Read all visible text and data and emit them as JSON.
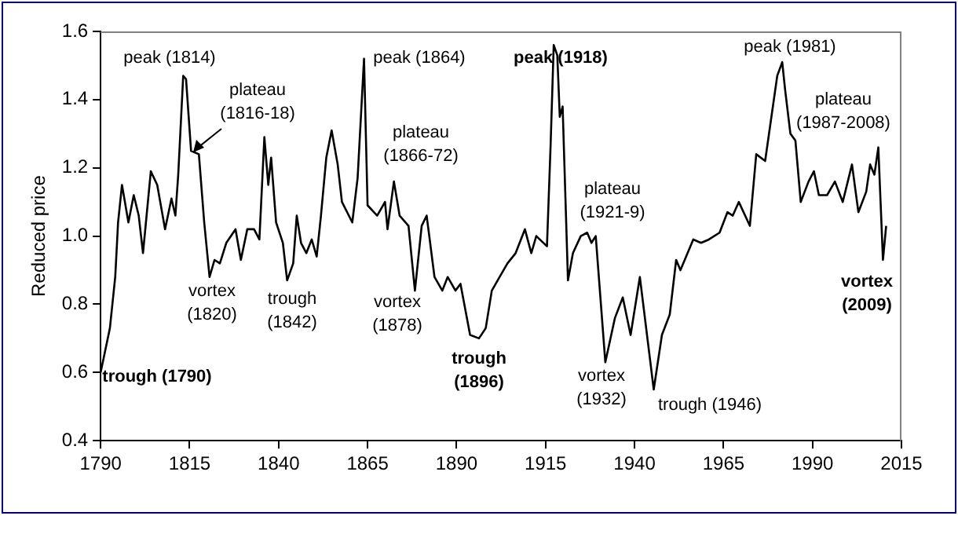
{
  "chart_data": {
    "type": "line",
    "ylabel": "Reduced price",
    "xlim": [
      1790,
      2015
    ],
    "xticks": [
      1790,
      1815,
      1840,
      1865,
      1890,
      1915,
      1940,
      1965,
      1990,
      2015
    ],
    "ylim": [
      0.4,
      1.6
    ],
    "yticks": [
      0.4,
      0.6,
      0.8,
      {
        "value": 1,
        "label": "1.0"
      },
      1.2,
      1.4,
      1.6
    ],
    "grid": false,
    "legend": false,
    "marker": "none",
    "line_style": "solid",
    "series": [
      {
        "color": "#000000",
        "x": [
          1790,
          1792.6,
          1794.1,
          1794.9,
          1796,
          1797.8,
          1799.3,
          1800.7,
          1801.9,
          1804.1,
          1805.9,
          1808.1,
          1809.9,
          1811,
          1811.8,
          1813.2,
          1814,
          1815.4,
          1817.6,
          1819.1,
          1820.6,
          1822,
          1823.5,
          1825.3,
          1827.9,
          1829.4,
          1831.2,
          1833.1,
          1834.6,
          1836,
          1837.1,
          1837.9,
          1839.3,
          1841.2,
          1842.4,
          1844.1,
          1845.1,
          1846.3,
          1847.8,
          1849.3,
          1850.7,
          1851.9,
          1853.4,
          1854.9,
          1856.6,
          1857.8,
          1860.7,
          1862.2,
          1864,
          1865,
          1867.7,
          1869.9,
          1870.6,
          1872.4,
          1874,
          1876.5,
          1878.3,
          1880.2,
          1881.6,
          1883.8,
          1886,
          1887.5,
          1889.7,
          1891.1,
          1893.8,
          1896.3,
          1898.2,
          1899.9,
          1902.1,
          1904.3,
          1906.6,
          1909.2,
          1911,
          1912.4,
          1915.4,
          1916.4,
          1917.3,
          1918.3,
          1919,
          1919.8,
          1921.3,
          1922.7,
          1924.9,
          1926.7,
          1927.9,
          1929.1,
          1931.8,
          1934.5,
          1936.7,
          1938.9,
          1941.5,
          1945.4,
          1947.7,
          1949.9,
          1951.7,
          1952.9,
          1956.5,
          1958.7,
          1960.9,
          1963.9,
          1966.1,
          1967.6,
          1969.3,
          1972.4,
          1974.2,
          1976.7,
          1980.1,
          1981.5,
          1982.3,
          1983.8,
          1985.2,
          1986.7,
          1988.9,
          1990.4,
          1991.8,
          1994.1,
          1996.3,
          1998.5,
          2001.1,
          2002.9,
          2005.1,
          2006.2,
          2007.4,
          2008.5,
          2009.8,
          2010.7
        ],
        "values": [
          0.6,
          0.73,
          0.88,
          1.04,
          1.15,
          1.04,
          1.12,
          1.06,
          0.95,
          1.19,
          1.15,
          1.02,
          1.11,
          1.06,
          1.18,
          1.47,
          1.46,
          1.25,
          1.24,
          1.04,
          0.88,
          0.93,
          0.92,
          0.98,
          1.02,
          0.93,
          1.02,
          1.02,
          0.99,
          1.29,
          1.15,
          1.23,
          1.04,
          0.98,
          0.87,
          0.92,
          1.06,
          0.98,
          0.95,
          0.99,
          0.94,
          1.06,
          1.23,
          1.31,
          1.21,
          1.1,
          1.04,
          1.17,
          1.52,
          1.09,
          1.06,
          1.1,
          1.02,
          1.16,
          1.06,
          1.03,
          0.84,
          1.03,
          1.06,
          0.88,
          0.84,
          0.88,
          0.84,
          0.86,
          0.71,
          0.7,
          0.73,
          0.84,
          0.88,
          0.92,
          0.95,
          1.02,
          0.95,
          1,
          0.97,
          1.26,
          1.56,
          1.53,
          1.35,
          1.38,
          0.87,
          0.95,
          1,
          1.01,
          0.98,
          1,
          0.63,
          0.76,
          0.82,
          0.71,
          0.88,
          0.55,
          0.71,
          0.77,
          0.93,
          0.9,
          0.99,
          0.98,
          0.99,
          1.01,
          1.07,
          1.06,
          1.1,
          1.03,
          1.24,
          1.22,
          1.47,
          1.51,
          1.43,
          1.3,
          1.28,
          1.1,
          1.16,
          1.19,
          1.12,
          1.12,
          1.16,
          1.1,
          1.21,
          1.07,
          1.13,
          1.21,
          1.18,
          1.26,
          0.93,
          1.03
        ]
      }
    ],
    "annotations": [
      "trough (1790)",
      "peak (1814)",
      "plateau\n(1816-18)",
      "vortex\n(1820)",
      "trough\n(1842)",
      "peak (1864)",
      "plateau\n(1866-72)",
      "vortex\n(1878)",
      "trough\n(1896)",
      "peak (1918)",
      "plateau\n(1921-9)",
      "vortex\n(1932)",
      "trough (1946)",
      "peak (1981)",
      "plateau\n(1987-2008)",
      "vortex\n(2009)"
    ]
  }
}
